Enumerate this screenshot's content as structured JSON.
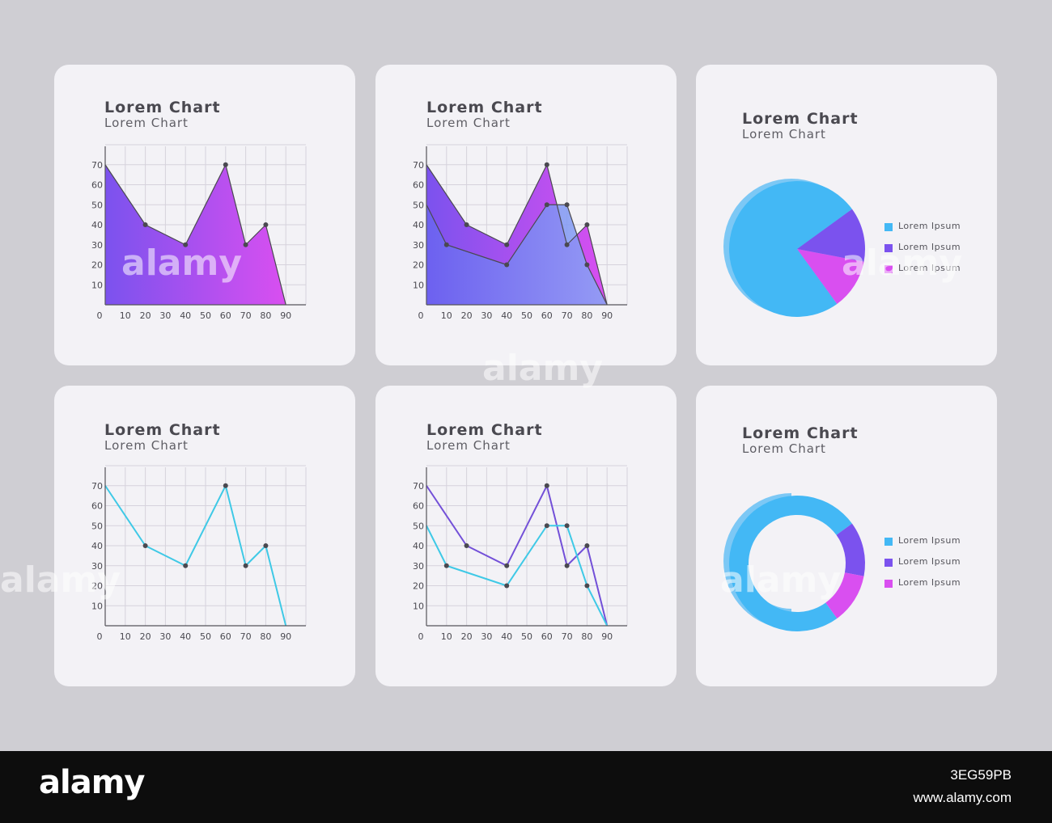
{
  "colors": {
    "background": "#cfced3",
    "card": "#f3f2f6",
    "purple": "#7b52ee",
    "magenta": "#d94ff0",
    "violet_line": "#7350d8",
    "cyan_line": "#3fc9e6",
    "blue": "#43b8f5",
    "light_blue": "#7cc8f5",
    "footer": "#0d0d0d"
  },
  "cards": [
    {
      "title": "Lorem Chart",
      "subtitle": "Lorem Chart"
    },
    {
      "title": "Lorem Chart",
      "subtitle": "Lorem Chart"
    },
    {
      "title": "Lorem Chart",
      "subtitle": "Lorem Chart"
    },
    {
      "title": "Lorem Chart",
      "subtitle": "Lorem Chart"
    },
    {
      "title": "Lorem Chart",
      "subtitle": "Lorem Chart"
    },
    {
      "title": "Lorem Chart",
      "subtitle": "Lorem Chart"
    }
  ],
  "chart_data": [
    {
      "type": "area",
      "title": "Lorem Chart",
      "subtitle": "Lorem Chart",
      "x_ticks": [
        0,
        10,
        20,
        30,
        40,
        50,
        60,
        70,
        80,
        90
      ],
      "y_ticks": [
        10,
        20,
        30,
        40,
        50,
        60,
        70
      ],
      "xlim": [
        0,
        100
      ],
      "ylim": [
        0,
        80
      ],
      "grid": true,
      "series": [
        {
          "x": [
            0,
            20,
            40,
            60,
            70,
            80,
            90
          ],
          "y": [
            70,
            40,
            30,
            70,
            30,
            40,
            0
          ]
        }
      ]
    },
    {
      "type": "area",
      "title": "Lorem Chart",
      "subtitle": "Lorem Chart",
      "x_ticks": [
        0,
        10,
        20,
        30,
        40,
        50,
        60,
        70,
        80,
        90
      ],
      "y_ticks": [
        10,
        20,
        30,
        40,
        50,
        60,
        70
      ],
      "xlim": [
        0,
        100
      ],
      "ylim": [
        0,
        80
      ],
      "grid": true,
      "series": [
        {
          "x": [
            0,
            20,
            40,
            60,
            70,
            80,
            90
          ],
          "y": [
            70,
            40,
            30,
            70,
            30,
            40,
            0
          ]
        },
        {
          "x": [
            0,
            10,
            40,
            60,
            70,
            80,
            90
          ],
          "y": [
            50,
            30,
            20,
            50,
            50,
            20,
            0
          ]
        }
      ]
    },
    {
      "type": "pie",
      "title": "Lorem Chart",
      "subtitle": "Lorem Chart",
      "labels": [
        "Lorem Ipsum",
        "Lorem Ipsum",
        "Lorem Ipsum"
      ],
      "values": [
        75,
        13,
        12
      ],
      "colors": [
        "#43b8f5",
        "#7b52ee",
        "#d94ff0"
      ],
      "legend": "right"
    },
    {
      "type": "line",
      "title": "Lorem Chart",
      "subtitle": "Lorem Chart",
      "x_ticks": [
        0,
        10,
        20,
        30,
        40,
        50,
        60,
        70,
        80,
        90
      ],
      "y_ticks": [
        10,
        20,
        30,
        40,
        50,
        60,
        70
      ],
      "xlim": [
        0,
        100
      ],
      "ylim": [
        0,
        80
      ],
      "grid": true,
      "series": [
        {
          "x": [
            0,
            20,
            40,
            60,
            70,
            80,
            90
          ],
          "y": [
            70,
            40,
            30,
            70,
            30,
            40,
            0
          ],
          "color": "#3fc9e6"
        }
      ]
    },
    {
      "type": "line",
      "title": "Lorem Chart",
      "subtitle": "Lorem Chart",
      "x_ticks": [
        0,
        10,
        20,
        30,
        40,
        50,
        60,
        70,
        80,
        90
      ],
      "y_ticks": [
        10,
        20,
        30,
        40,
        50,
        60,
        70
      ],
      "xlim": [
        0,
        100
      ],
      "ylim": [
        0,
        80
      ],
      "grid": true,
      "series": [
        {
          "x": [
            0,
            20,
            40,
            60,
            70,
            80,
            90
          ],
          "y": [
            70,
            40,
            30,
            70,
            30,
            40,
            0
          ],
          "color": "#7350d8"
        },
        {
          "x": [
            0,
            10,
            40,
            60,
            70,
            80,
            90
          ],
          "y": [
            50,
            30,
            20,
            50,
            50,
            20,
            0
          ],
          "color": "#3fc9e6"
        }
      ]
    },
    {
      "type": "pie",
      "subtype": "donut",
      "title": "Lorem Chart",
      "subtitle": "Lorem Chart",
      "labels": [
        "Lorem Ipsum",
        "Lorem Ipsum",
        "Lorem Ipsum"
      ],
      "values": [
        75,
        13,
        12
      ],
      "colors": [
        "#43b8f5",
        "#7b52ee",
        "#d94ff0"
      ],
      "legend": "right"
    }
  ],
  "watermark": {
    "text": "alamy"
  },
  "footer": {
    "logo": "alamy",
    "image_id": "3EG59PB",
    "url": "www.alamy.com"
  }
}
